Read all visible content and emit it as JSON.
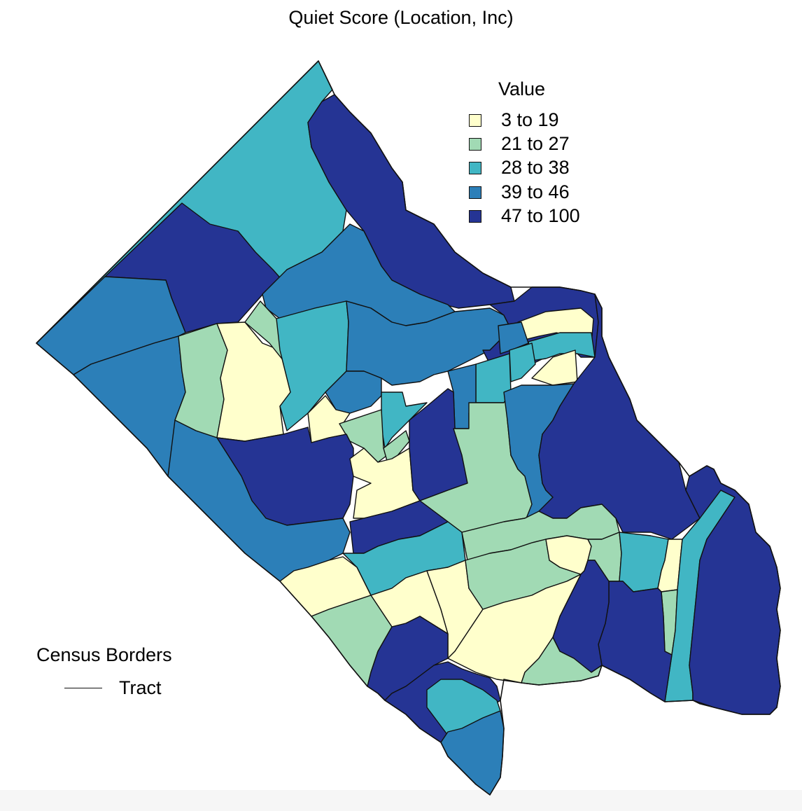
{
  "title": "Quiet Score (Location, Inc)",
  "legend": {
    "title": "Value",
    "entries": [
      {
        "label": "3 to 19",
        "color": "#ffffcc"
      },
      {
        "label": "21 to 27",
        "color": "#a1dab4"
      },
      {
        "label": "28 to 38",
        "color": "#41b6c4"
      },
      {
        "label": "39 to 46",
        "color": "#2c7fb8"
      },
      {
        "label": "47 to 100",
        "color": "#253494"
      }
    ]
  },
  "borders_legend": {
    "title": "Census Borders",
    "item_label": "Tract"
  }
}
